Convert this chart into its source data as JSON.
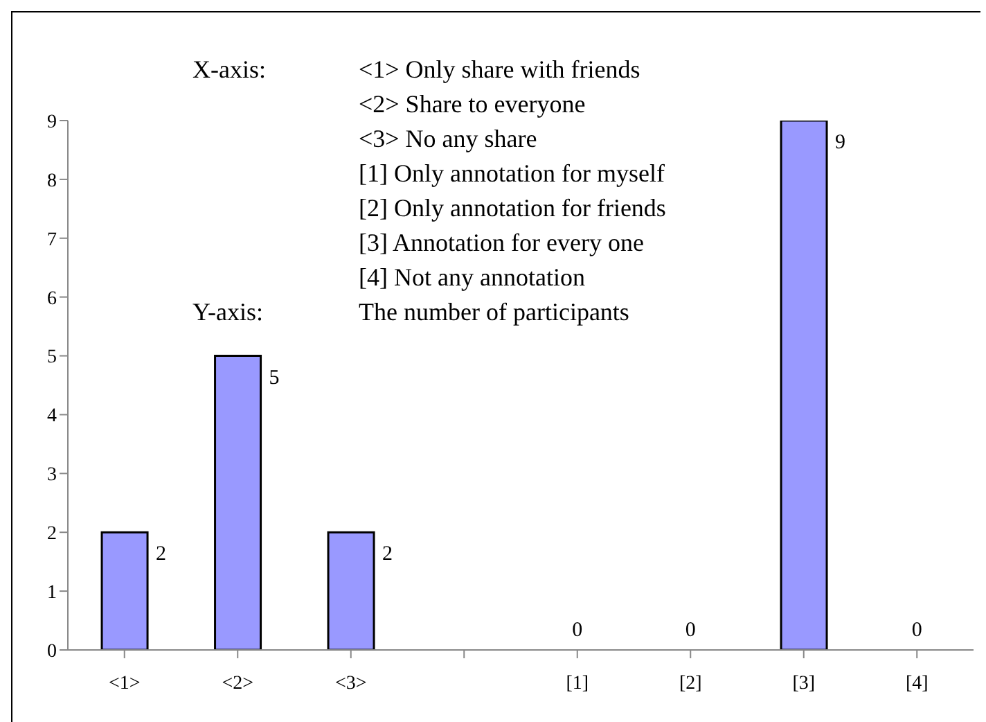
{
  "chart_data": {
    "type": "bar",
    "categories": [
      "<1>",
      "<2>",
      "<3>",
      null,
      "[1]",
      "[2]",
      "[3]",
      "[4]"
    ],
    "values": [
      2,
      5,
      2,
      null,
      0,
      0,
      9,
      0
    ],
    "color": "#9999ff",
    "ylim": [
      0,
      9
    ],
    "yticks": [
      0,
      1,
      2,
      3,
      4,
      5,
      6,
      7,
      8,
      9
    ],
    "grid": false,
    "legend": false,
    "data_labels": true,
    "annotations": [
      "X-axis:",
      "<1> Only share with friends",
      "<2> Share to everyone",
      "<3> No any share",
      "[1] Only annotation for myself",
      "[2] Only annotation for friends",
      "[3] Annotation for every one",
      "[4] Not any annotation",
      "Y-axis:",
      "The number of participants"
    ]
  }
}
